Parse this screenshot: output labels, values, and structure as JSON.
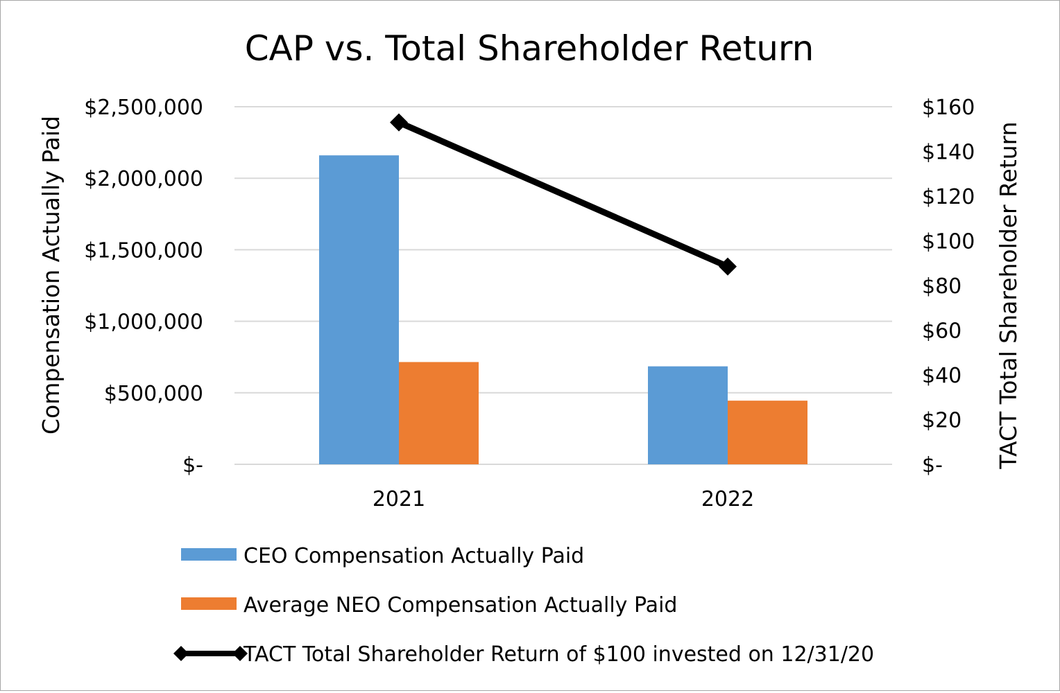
{
  "chart_data": {
    "type": "bar",
    "title": "CAP vs. Total Shareholder Return",
    "categories": [
      "2021",
      "2022"
    ],
    "series": [
      {
        "name": "CEO Compensation Actually Paid",
        "kind": "bar",
        "axis": "left",
        "color": "#5b9bd5",
        "values": [
          2160000,
          685000
        ]
      },
      {
        "name": "Average NEO Compensation Actually Paid",
        "kind": "bar",
        "axis": "left",
        "color": "#ed7d31",
        "values": [
          715000,
          445000
        ]
      },
      {
        "name": "TACT Total Shareholder Return of $100 invested on 12/31/20",
        "kind": "line",
        "axis": "right",
        "color": "#000000",
        "marker": "diamond",
        "values": [
          153,
          88.5
        ]
      }
    ],
    "ylabel": "Compensation Actually Paid",
    "y2label": "TACT Total Shareholder Return",
    "ylim": [
      0,
      2500000
    ],
    "y2lim": [
      0,
      160
    ],
    "yticks": [
      0,
      500000,
      1000000,
      1500000,
      2000000,
      2500000
    ],
    "ytick_labels": [
      "$-",
      "$500,000",
      "$1,000,000",
      "$1,500,000",
      "$2,000,000",
      "$2,500,000"
    ],
    "y2ticks": [
      0,
      20,
      40,
      60,
      80,
      100,
      120,
      140,
      160
    ],
    "y2tick_labels": [
      "$-",
      "$20",
      "$40",
      "$60",
      "$80",
      "$100",
      "$120",
      "$140",
      "$160"
    ],
    "grid": true,
    "legend_position": "bottom"
  }
}
